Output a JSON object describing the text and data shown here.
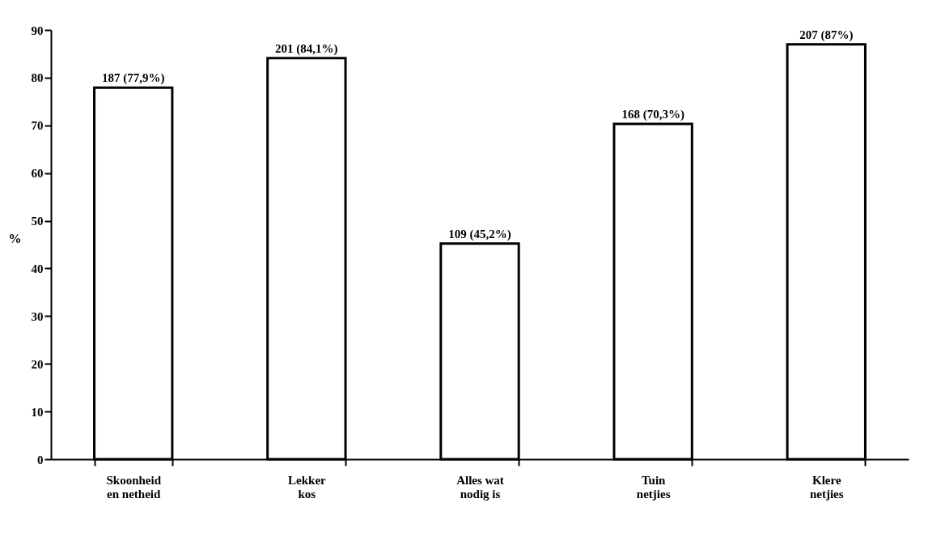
{
  "chart_data": {
    "type": "bar",
    "ylabel": "%",
    "categories": [
      "Skoonheid\nen netheid",
      "Lekker\nkos",
      "Alles wat\nnodig is",
      "Tuin\nnetjies",
      "Klere\nnetjies"
    ],
    "values": [
      77.9,
      84.1,
      45.2,
      70.3,
      87
    ],
    "value_labels": [
      "187 (77,9%)",
      "201 (84,1%)",
      "109 (45,2%)",
      "168 (70,3%)",
      "207 (87%)"
    ],
    "color": "#ffffff",
    "ylim": [
      0,
      90
    ],
    "yticks": [
      0,
      10,
      20,
      30,
      40,
      50,
      60,
      70,
      80,
      90
    ],
    "grid": false
  }
}
